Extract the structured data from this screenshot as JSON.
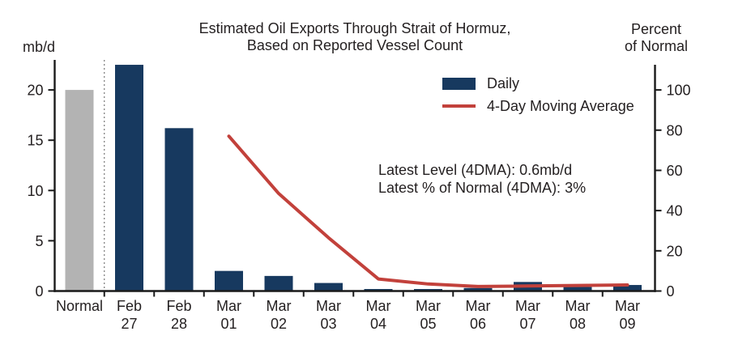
{
  "title": {
    "line1": "Estimated Oil Exports Through Strait of Hormuz,",
    "line2": "Based on Reported Vessel Count"
  },
  "left_axis_unit": "mb/d",
  "right_axis_unit": {
    "line1": "Percent",
    "line2": "of Normal"
  },
  "legend": {
    "daily_label": "Daily",
    "ma_label": "4-Day Moving Average"
  },
  "annotation": {
    "line1": "Latest Level (4DMA): 0.6mb/d",
    "line2": "Latest % of Normal (4DMA): 3%"
  },
  "colors": {
    "daily_bar": "#17395f",
    "normal_bar": "#b3b3b3",
    "ma_line": "#c2413b",
    "axis": "#1a1a1a",
    "separator": "#777777",
    "text": "#231f20"
  },
  "chart_data": {
    "type": "bar",
    "title": "Estimated Oil Exports Through Strait of Hormuz, Based on Reported Vessel Count",
    "categories": [
      "Normal",
      "Feb 27",
      "Feb 28",
      "Mar 01",
      "Mar 02",
      "Mar 03",
      "Mar 04",
      "Mar 05",
      "Mar 06",
      "Mar 07",
      "Mar 08",
      "Mar 09"
    ],
    "series": [
      {
        "name": "Daily",
        "type": "bar",
        "values": [
          20.0,
          22.5,
          16.2,
          2.0,
          1.5,
          0.8,
          0.2,
          0.2,
          0.3,
          0.9,
          0.4,
          0.6
        ]
      },
      {
        "name": "4-Day Moving Average",
        "type": "line",
        "values": [
          null,
          null,
          null,
          15.4,
          9.7,
          5.3,
          1.2,
          0.7,
          0.45,
          0.5,
          0.55,
          0.6
        ]
      }
    ],
    "left_axis": {
      "label": "mb/d",
      "ticks": [
        0,
        5,
        10,
        15,
        20
      ],
      "range": [
        0,
        23
      ]
    },
    "right_axis": {
      "label": "Percent of Normal",
      "ticks": [
        0,
        20,
        40,
        60,
        80,
        100
      ],
      "range": [
        0,
        112
      ],
      "normal_equals_mbd": 20
    },
    "separator_after_index": 0,
    "normal_bar_index": 0,
    "grid": false,
    "legend_position": "top-right",
    "latest_level_4dma_mbd": 0.6,
    "latest_pct_of_normal_4dma": 3
  }
}
